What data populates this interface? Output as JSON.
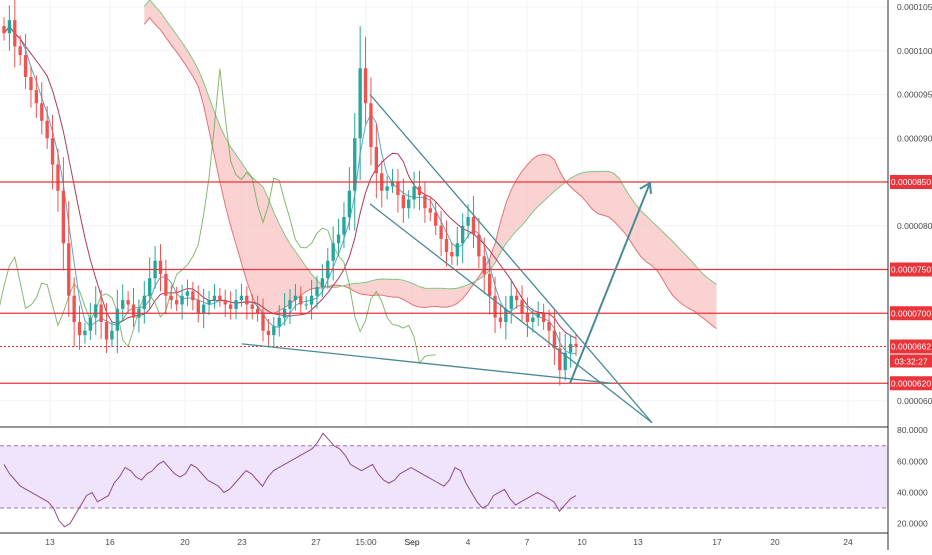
{
  "chart_data": [
    {
      "type": "candlestick",
      "panel": "price",
      "ylim": [
        5.7e-05,
        0.0001058
      ],
      "y_ticks": [
        "0.0001050",
        "0.0001000",
        "0.0000950",
        "0.0000900",
        "0.0000800",
        "0.0000700",
        "0.0000600"
      ],
      "x_ticks": [
        "13",
        "16",
        "20",
        "23",
        "27",
        "15:00",
        "Sep",
        "4",
        "7",
        "10",
        "13",
        "17",
        "20",
        "24"
      ],
      "horizontal_levels": [
        {
          "value": "0.0000850",
          "color": "#e8343a"
        },
        {
          "value": "0.0000750",
          "color": "#e8343a"
        },
        {
          "value": "0.0000700",
          "color": "#e8343a"
        },
        {
          "value": "0.0000620",
          "color": "#e8343a"
        }
      ],
      "current_price": {
        "value": "0.0000662",
        "countdown": "03:32:27"
      },
      "candle_path": [
        0.000102,
        0.0001035,
        0.0001005,
        9.95e-05,
        9.7e-05,
        9.55e-05,
        9.4e-05,
        9.2e-05,
        9e-05,
        8.7e-05,
        8.4e-05,
        7.8e-05,
        7.2e-05,
        6.9e-05,
        6.75e-05,
        6.8e-05,
        6.95e-05,
        7.1e-05,
        6.9e-05,
        6.7e-05,
        6.8e-05,
        7.05e-05,
        7.15e-05,
        7.1e-05,
        6.95e-05,
        7.05e-05,
        7.2e-05,
        7.4e-05,
        7.6e-05,
        7.45e-05,
        7.2e-05,
        7.15e-05,
        7.1e-05,
        7.2e-05,
        7.25e-05,
        7.15e-05,
        7e-05,
        7.1e-05,
        7.15e-05,
        7.2e-05,
        7.15e-05,
        7.1e-05,
        7.05e-05,
        7.15e-05,
        7.2e-05,
        7.1e-05,
        7.05e-05,
        7e-05,
        6.8e-05,
        6.75e-05,
        6.85e-05,
        6.95e-05,
        7.05e-05,
        7.15e-05,
        7.2e-05,
        7.1e-05,
        7.1e-05,
        7.2e-05,
        7.3e-05,
        7.4e-05,
        7.6e-05,
        7.8e-05,
        7.9e-05,
        8.1e-05,
        8.4e-05,
        9e-05,
        9.8e-05,
        9.4e-05,
        8.9e-05,
        8.6e-05,
        8.4e-05,
        8.45e-05,
        8.5e-05,
        8.35e-05,
        8.2e-05,
        8.3e-05,
        8.45e-05,
        8.35e-05,
        8.2e-05,
        8.15e-05,
        8e-05,
        7.85e-05,
        7.7e-05,
        7.65e-05,
        7.8e-05,
        8e-05,
        8.1e-05,
        7.9e-05,
        7.65e-05,
        7.45e-05,
        7.2e-05,
        6.95e-05,
        6.9e-05,
        7.05e-05,
        7.2e-05,
        7.15e-05,
        7e-05,
        6.9e-05,
        6.95e-05,
        7e-05,
        6.9e-05,
        6.8e-05,
        6.6e-05,
        6.35e-05,
        6.55e-05,
        6.65e-05,
        6.62e-05
      ],
      "trendlines": [
        {
          "from": [
            9.5e-05,
            "15:00"
          ],
          "to": [
            5.75e-05,
            "13"
          ]
        },
        {
          "from": [
            8.25e-05,
            "15:00"
          ],
          "to": [
            5.75e-05,
            "13"
          ]
        },
        {
          "from": [
            6.65e-05,
            "23"
          ],
          "to": [
            6.2e-05,
            "10"
          ]
        }
      ],
      "projection_arrow": {
        "from": "0.0000620",
        "to": "0.0000850"
      },
      "indicator": "Ichimoku cloud"
    },
    {
      "type": "line",
      "panel": "rsi",
      "ylim": [
        14,
        82
      ],
      "y_ticks": [
        "80.0000",
        "60.0000",
        "40.0000",
        "20.0000"
      ],
      "bands": [
        30,
        70
      ],
      "values": [
        58,
        52,
        48,
        44,
        42,
        40,
        38,
        36,
        34,
        30,
        22,
        18,
        20,
        26,
        32,
        38,
        40,
        34,
        36,
        38,
        46,
        50,
        56,
        54,
        50,
        48,
        52,
        54,
        58,
        60,
        56,
        52,
        50,
        52,
        58,
        56,
        52,
        48,
        46,
        44,
        40,
        42,
        46,
        50,
        54,
        52,
        48,
        44,
        50,
        54,
        56,
        58,
        60,
        62,
        64,
        66,
        68,
        72,
        78,
        74,
        70,
        68,
        64,
        58,
        56,
        54,
        56,
        58,
        52,
        48,
        46,
        48,
        52,
        54,
        56,
        54,
        52,
        50,
        48,
        46,
        44,
        48,
        56,
        54,
        46,
        40,
        34,
        30,
        32,
        38,
        40,
        42,
        36,
        32,
        34,
        36,
        38,
        40,
        38,
        36,
        34,
        28,
        32,
        36,
        38
      ]
    }
  ],
  "colors": {
    "up_candle": "#26a69a",
    "down_candle": "#ef5350",
    "level_line": "#e8343a",
    "trendline": "#4a8a95",
    "cloud_bear": "#f7c3c1",
    "cloud_bull": "#c9e8c6",
    "rsi_line": "#8e4a8c",
    "rsi_band": "#ead9f7"
  }
}
